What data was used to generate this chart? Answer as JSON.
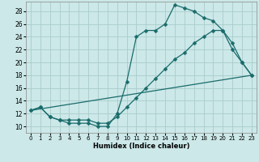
{
  "xlabel": "Humidex (Indice chaleur)",
  "bg_color": "#cce8e8",
  "grid_color": "#aacccc",
  "line_color": "#1a6b6b",
  "xlim": [
    -0.5,
    23.5
  ],
  "ylim": [
    9,
    29.5
  ],
  "xticks": [
    0,
    1,
    2,
    3,
    4,
    5,
    6,
    7,
    8,
    9,
    10,
    11,
    12,
    13,
    14,
    15,
    16,
    17,
    18,
    19,
    20,
    21,
    22,
    23
  ],
  "yticks": [
    10,
    12,
    14,
    16,
    18,
    20,
    22,
    24,
    26,
    28
  ],
  "curve1_x": [
    0,
    1,
    2,
    3,
    4,
    5,
    6,
    7,
    8,
    9,
    10,
    11,
    12,
    13,
    14,
    15,
    16,
    17,
    18,
    19,
    20,
    21,
    22,
    23
  ],
  "curve1_y": [
    12.5,
    13,
    11.5,
    11,
    10.5,
    10.5,
    10.5,
    10,
    10,
    12,
    17,
    24,
    25,
    25,
    26,
    29,
    28.5,
    28,
    27,
    26.5,
    25,
    23,
    20,
    18
  ],
  "curve2_x": [
    0,
    1,
    2,
    3,
    4,
    5,
    6,
    7,
    8,
    9,
    10,
    11,
    12,
    13,
    14,
    15,
    16,
    17,
    18,
    19,
    20,
    21,
    22,
    23
  ],
  "curve2_y": [
    12.5,
    13,
    11.5,
    11,
    11,
    11,
    11,
    10.5,
    10.5,
    11.5,
    13,
    14.5,
    16,
    17.5,
    19,
    20.5,
    21.5,
    23,
    24,
    25,
    25,
    22,
    20,
    18
  ],
  "curve3_x": [
    0,
    23
  ],
  "curve3_y": [
    12.5,
    18
  ]
}
